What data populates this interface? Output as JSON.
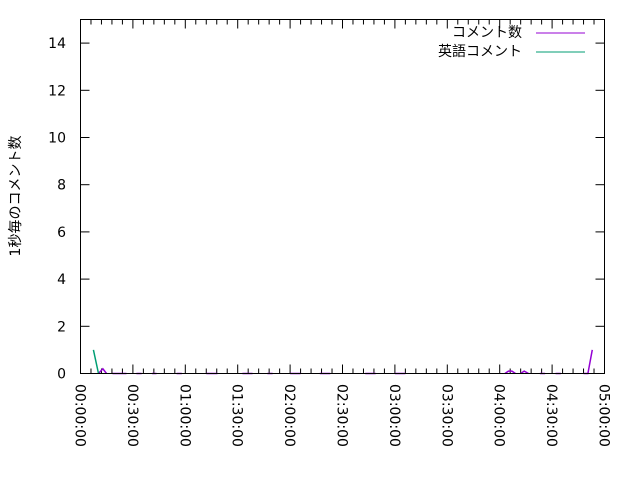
{
  "chart_data": {
    "type": "line",
    "title": "",
    "xlabel": "",
    "ylabel": "1秒毎のコメント数",
    "xlim_minutes": [
      0,
      300
    ],
    "ylim": [
      0,
      15
    ],
    "x_tick_labels": [
      "00:00:00",
      "00:30:00",
      "01:00:00",
      "01:30:00",
      "02:00:00",
      "02:30:00",
      "03:00:00",
      "03:30:00",
      "04:00:00",
      "04:30:00",
      "05:00:00"
    ],
    "y_ticks": [
      0,
      2,
      4,
      6,
      8,
      10,
      12,
      14
    ],
    "y_tick_labels": [
      "0",
      "2",
      "4",
      "6",
      "8",
      "10",
      "12",
      "14"
    ],
    "grid": false,
    "legend_position": "top-right",
    "series": [
      {
        "name": "コメント数",
        "color": "#9400d3",
        "segments_minutes_value": [
          [
            [
              10.3,
              0
            ],
            [
              12.8,
              0.2
            ],
            [
              14.9,
              0
            ]
          ],
          [
            [
              18.3,
              0
            ],
            [
              26.3,
              0
            ]
          ],
          [
            [
              32,
              0
            ],
            [
              35,
              0
            ]
          ],
          [
            [
              41,
              0
            ],
            [
              43.5,
              0
            ]
          ],
          [
            [
              55,
              0
            ],
            [
              58,
              0
            ]
          ],
          [
            [
              72,
              0
            ],
            [
              78.4,
              0
            ]
          ],
          [
            [
              92.7,
              0
            ],
            [
              98.5,
              0
            ]
          ],
          [
            [
              107,
              0
            ],
            [
              110,
              0
            ]
          ],
          [
            [
              120,
              0
            ],
            [
              126,
              0
            ]
          ],
          [
            [
              137,
              0
            ],
            [
              143,
              0
            ]
          ],
          [
            [
              163,
              0
            ],
            [
              169,
              0
            ]
          ],
          [
            [
              180,
              0
            ],
            [
              186,
              0
            ]
          ],
          [
            [
              243,
              0
            ],
            [
              245,
              0.1
            ],
            [
              247,
              0.1
            ],
            [
              249,
              0
            ]
          ],
          [
            [
              252,
              0
            ],
            [
              254,
              0.1
            ],
            [
              256.5,
              0
            ]
          ],
          [
            [
              263,
              0
            ],
            [
              266,
              0
            ]
          ],
          [
            [
              272,
              0
            ],
            [
              275,
              0
            ]
          ],
          [
            [
              288,
              0
            ],
            [
              290.5,
              0
            ],
            [
              293,
              1
            ]
          ]
        ]
      },
      {
        "name": "英語コメント",
        "color": "#009e73",
        "segments_minutes_value": [
          [
            [
              7.4,
              1
            ],
            [
              10.3,
              0
            ]
          ]
        ]
      }
    ]
  }
}
